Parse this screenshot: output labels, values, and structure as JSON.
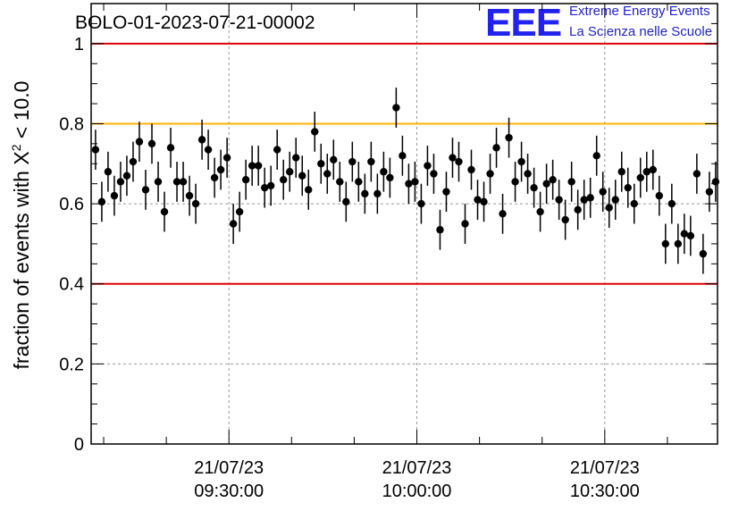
{
  "title": "BOLO-01-2023-07-21-00002",
  "logo": {
    "mark": "EEE",
    "line1": "Extreme Energy Events",
    "line2": "La Scienza nelle Scuole",
    "color": "#2222ee"
  },
  "colors": {
    "limit_lines": "#e00000",
    "threshold_line": "#ffb000",
    "markers": "#000000",
    "grid": "#999999"
  },
  "chart_data": {
    "type": "scatter",
    "title": "BOLO-01-2023-07-21-00002",
    "ylabel": "fraction of events with X² < 10.0",
    "ylim": [
      0,
      1.1
    ],
    "yticks": [
      0,
      0.2,
      0.4,
      0.6,
      0.8,
      1
    ],
    "ytick_labels": [
      "0",
      "0.2",
      "0.4",
      "0.6",
      "0.8",
      "1"
    ],
    "xticks": [
      {
        "date": "21/07/23",
        "time": "09:30:00",
        "minutes": 570
      },
      {
        "date": "21/07/23",
        "time": "10:00:00",
        "minutes": 600
      },
      {
        "date": "21/07/23",
        "time": "10:30:00",
        "minutes": 630
      }
    ],
    "x_minor_step_minutes": 10,
    "xlim_minutes": [
      548,
      648
    ],
    "grid": true,
    "horizontal_lines": [
      {
        "y": 1.0,
        "color": "#e00000"
      },
      {
        "y": 0.8,
        "color": "#ffb000"
      },
      {
        "y": 0.4,
        "color": "#e00000"
      }
    ],
    "series": [
      {
        "marker": "circle",
        "x_minutes_start": 548.7,
        "x_minutes_step": 1,
        "values": [
          0.735,
          0.605,
          0.68,
          0.62,
          0.655,
          0.67,
          0.705,
          0.755,
          0.635,
          0.75,
          0.655,
          0.58,
          0.74,
          0.655,
          0.655,
          0.62,
          0.6,
          0.76,
          0.735,
          0.665,
          0.685,
          0.715,
          0.55,
          0.58,
          0.66,
          0.695,
          0.695,
          0.64,
          0.645,
          0.735,
          0.66,
          0.68,
          0.715,
          0.67,
          0.635,
          0.78,
          0.7,
          0.675,
          0.71,
          0.655,
          0.605,
          0.705,
          0.655,
          0.625,
          0.705,
          0.625,
          0.68,
          0.665,
          0.84,
          0.72,
          0.65,
          0.655,
          0.6,
          0.695,
          0.675,
          0.535,
          0.63,
          0.715,
          0.705,
          0.55,
          0.685,
          0.61,
          0.605,
          0.675,
          0.74,
          0.575,
          0.765,
          0.655,
          0.705,
          0.675,
          0.64,
          0.58,
          0.65,
          0.66,
          0.61,
          0.56,
          0.655,
          0.585,
          0.61,
          0.615,
          0.72,
          0.63,
          0.59,
          0.61,
          0.68,
          0.64,
          0.6,
          0.665,
          0.68,
          0.685,
          0.62,
          0.5,
          0.6,
          0.5,
          0.525,
          0.52,
          0.675,
          0.475,
          0.63,
          0.655
        ],
        "errors": [
          0.05,
          0.05,
          0.05,
          0.05,
          0.05,
          0.05,
          0.05,
          0.05,
          0.05,
          0.05,
          0.05,
          0.05,
          0.05,
          0.05,
          0.05,
          0.05,
          0.05,
          0.05,
          0.05,
          0.05,
          0.05,
          0.05,
          0.05,
          0.05,
          0.05,
          0.05,
          0.05,
          0.05,
          0.05,
          0.05,
          0.05,
          0.05,
          0.05,
          0.05,
          0.05,
          0.05,
          0.05,
          0.05,
          0.05,
          0.05,
          0.05,
          0.05,
          0.05,
          0.05,
          0.05,
          0.05,
          0.05,
          0.05,
          0.05,
          0.05,
          0.05,
          0.05,
          0.05,
          0.05,
          0.05,
          0.05,
          0.05,
          0.05,
          0.05,
          0.05,
          0.05,
          0.05,
          0.05,
          0.05,
          0.05,
          0.05,
          0.05,
          0.05,
          0.05,
          0.05,
          0.05,
          0.05,
          0.05,
          0.05,
          0.05,
          0.05,
          0.05,
          0.05,
          0.05,
          0.05,
          0.05,
          0.05,
          0.05,
          0.05,
          0.05,
          0.05,
          0.05,
          0.05,
          0.05,
          0.05,
          0.05,
          0.05,
          0.05,
          0.05,
          0.05,
          0.05,
          0.05,
          0.05,
          0.05,
          0.05
        ]
      }
    ]
  }
}
